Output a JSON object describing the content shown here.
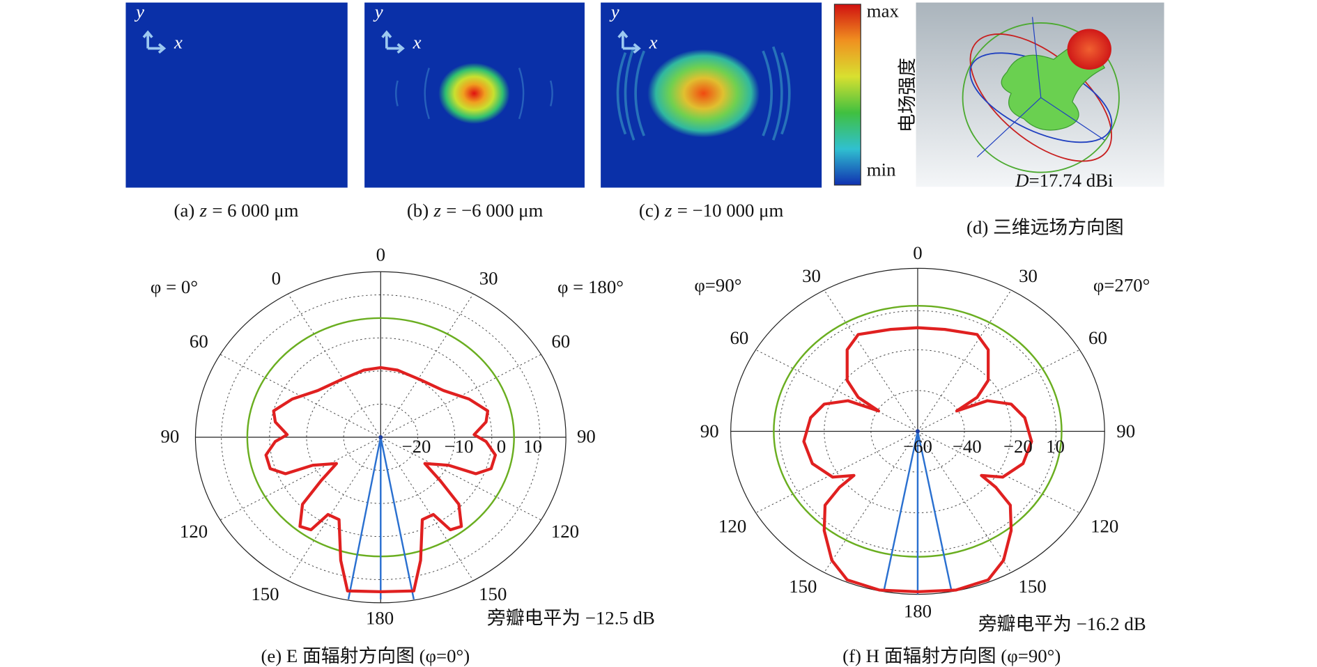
{
  "heatmaps": [
    {
      "label": "(a)",
      "variable": "z",
      "value": "= 6 000 μm"
    },
    {
      "label": "(b)",
      "variable": "z",
      "value": "= −6 000 μm"
    },
    {
      "label": "(c)",
      "variable": "z",
      "value": "= −10 000 μm"
    }
  ],
  "axis_labels": {
    "x": "x",
    "y": "y"
  },
  "colorbar": {
    "max": "max",
    "min": "min",
    "title": "电场强度"
  },
  "farfield_3d": {
    "variable": "D",
    "value": "=17.74 dBi",
    "caption": "(d) 三维远场方向图"
  },
  "polar_plots": [
    {
      "phi_left": "φ = 0°",
      "phi_right": "φ = 180°",
      "angle_labels": [
        "0",
        "0",
        "30",
        "60",
        "60",
        "90",
        "90",
        "120",
        "120",
        "150",
        "150",
        "180"
      ],
      "radial_labels": [
        "−20",
        "−10",
        "0",
        "10"
      ],
      "sidelobe": "旁瓣电平为 −12.5 dB",
      "caption": "(e) E 面辐射方向图 (φ=0°)"
    },
    {
      "phi_left": "φ=90°",
      "phi_right": "φ=270°",
      "angle_labels": [
        "0",
        "30",
        "30",
        "60",
        "60",
        "90",
        "90",
        "120",
        "120",
        "150",
        "150",
        "180"
      ],
      "radial_labels": [
        "−60",
        "−40",
        "−20",
        "10"
      ],
      "sidelobe": "旁瓣电平为 −16.2 dB",
      "caption": "(f) H 面辐射方向图 (φ=90°)"
    }
  ]
}
